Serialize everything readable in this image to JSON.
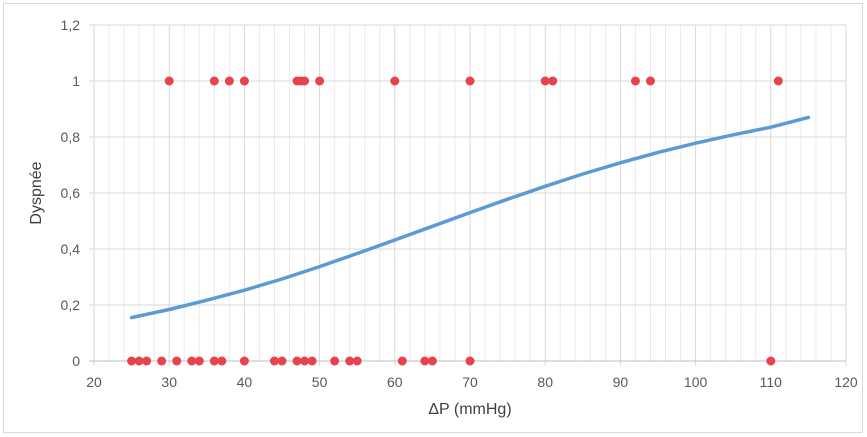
{
  "chart_data": {
    "type": "scatter",
    "xlabel": "ΔP (mmHg)",
    "ylabel": "Dyspnée",
    "xlim": [
      20,
      120
    ],
    "ylim": [
      0,
      1.2
    ],
    "x_ticks": [
      20,
      30,
      40,
      50,
      60,
      70,
      80,
      90,
      100,
      110,
      120
    ],
    "x_tick_labels": [
      "20",
      "30",
      "40",
      "50",
      "60",
      "70",
      "80",
      "90",
      "100",
      "110",
      "120"
    ],
    "y_ticks": [
      0,
      0.2,
      0.4,
      0.6,
      0.8,
      1,
      1.2
    ],
    "y_tick_labels": [
      "0",
      "0,2",
      "0,4",
      "0,6",
      "0,8",
      "1",
      "1,2"
    ],
    "grid": "major and minor vertical, major horizontal",
    "legend": "none",
    "colors": {
      "points": "#e8424b",
      "curve": "#5b9bd5",
      "grid": "#d9d9d9"
    },
    "series": [
      {
        "type": "scatter",
        "points": [
          [
            30,
            1
          ],
          [
            36,
            1
          ],
          [
            38,
            1
          ],
          [
            40,
            1
          ],
          [
            47,
            1
          ],
          [
            47.5,
            1
          ],
          [
            48,
            1
          ],
          [
            50,
            1
          ],
          [
            60,
            1
          ],
          [
            70,
            1
          ],
          [
            80,
            1
          ],
          [
            81,
            1
          ],
          [
            92,
            1
          ],
          [
            94,
            1
          ],
          [
            111,
            1
          ],
          [
            25,
            0
          ],
          [
            26,
            0
          ],
          [
            27,
            0
          ],
          [
            29,
            0
          ],
          [
            31,
            0
          ],
          [
            33,
            0
          ],
          [
            34,
            0
          ],
          [
            36,
            0
          ],
          [
            37,
            0
          ],
          [
            40,
            0
          ],
          [
            44,
            0
          ],
          [
            45,
            0
          ],
          [
            47,
            0
          ],
          [
            48,
            0
          ],
          [
            49,
            0
          ],
          [
            52,
            0
          ],
          [
            54,
            0
          ],
          [
            55,
            0
          ],
          [
            61,
            0
          ],
          [
            64,
            0
          ],
          [
            65,
            0
          ],
          [
            70,
            0
          ],
          [
            110,
            0
          ]
        ]
      },
      {
        "type": "line",
        "x": [
          25,
          30,
          35,
          40,
          45,
          50,
          55,
          60,
          65,
          70,
          75,
          80,
          85,
          90,
          95,
          100,
          105,
          110,
          115
        ],
        "y": [
          0.155,
          0.184,
          0.217,
          0.253,
          0.293,
          0.337,
          0.384,
          0.432,
          0.481,
          0.53,
          0.578,
          0.624,
          0.668,
          0.708,
          0.745,
          0.778,
          0.808,
          0.835,
          0.87
        ]
      }
    ]
  }
}
